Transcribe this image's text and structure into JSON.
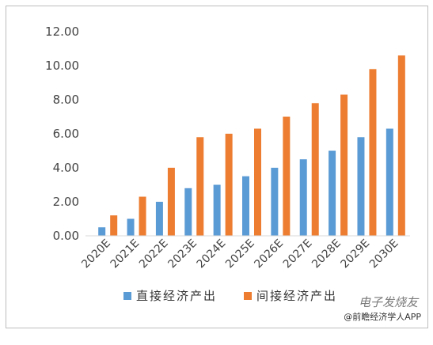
{
  "chart_data": {
    "type": "bar",
    "categories": [
      "2020E",
      "2021E",
      "2022E",
      "2023E",
      "2024E",
      "2025E",
      "2026E",
      "2027E",
      "2028E",
      "2029E",
      "2030E"
    ],
    "series": [
      {
        "name": "直接经济产出",
        "color": "#5b9bd5",
        "values": [
          0.5,
          1.0,
          2.0,
          2.8,
          3.0,
          3.5,
          4.0,
          4.5,
          5.0,
          5.8,
          6.3
        ]
      },
      {
        "name": "间接经济产出",
        "color": "#ed7d31",
        "values": [
          1.2,
          2.3,
          4.0,
          5.8,
          6.0,
          6.3,
          7.0,
          7.8,
          8.3,
          9.8,
          10.6
        ]
      }
    ],
    "y_ticks": [
      "0.00",
      "2.00",
      "4.00",
      "6.00",
      "8.00",
      "10.00",
      "12.00"
    ],
    "ylim": [
      0,
      12
    ],
    "legend_position": "bottom",
    "grid": false
  },
  "watermark": {
    "site": "电子发烧友",
    "corner": "@前瞻经济学人APP"
  }
}
